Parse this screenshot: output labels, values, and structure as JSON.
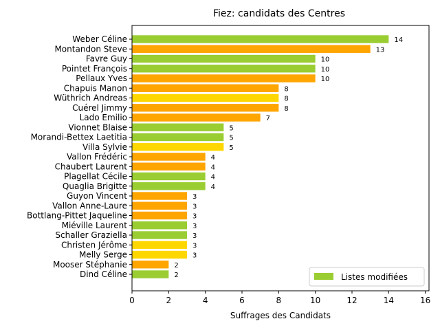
{
  "chart_data": {
    "type": "bar",
    "orientation": "horizontal",
    "title": "Fiez: candidats des Centres",
    "xlabel": "Suffrages des Candidats",
    "ylabel": "",
    "xlim": [
      0,
      16.2
    ],
    "xticks": [
      0,
      2,
      4,
      6,
      8,
      10,
      12,
      14,
      16
    ],
    "grid": false,
    "legend": {
      "label": "Listes modifiées",
      "color": "#9acd32",
      "placement": "lower-right"
    },
    "colors": {
      "green": "#9acd32",
      "orange": "#ffa500",
      "yellow": "#ffd700"
    },
    "bars": [
      {
        "name": "Weber Céline",
        "value": 14,
        "color": "green"
      },
      {
        "name": "Montandon Steve",
        "value": 13,
        "color": "orange"
      },
      {
        "name": "Favre Guy",
        "value": 10,
        "color": "green"
      },
      {
        "name": "Pointet François",
        "value": 10,
        "color": "green"
      },
      {
        "name": "Pellaux Yves",
        "value": 10,
        "color": "orange"
      },
      {
        "name": "Chapuis Manon",
        "value": 8,
        "color": "orange"
      },
      {
        "name": "Wüthrich Andreas",
        "value": 8,
        "color": "yellow"
      },
      {
        "name": "Cuérel Jimmy",
        "value": 8,
        "color": "orange"
      },
      {
        "name": "Lado Emilio",
        "value": 7,
        "color": "orange"
      },
      {
        "name": "Vionnet Blaise",
        "value": 5,
        "color": "green"
      },
      {
        "name": "Morandi-Bettex Laetitia",
        "value": 5,
        "color": "green"
      },
      {
        "name": "Villa Sylvie",
        "value": 5,
        "color": "yellow"
      },
      {
        "name": "Vallon Frédéric",
        "value": 4,
        "color": "orange"
      },
      {
        "name": "Chaubert Laurent",
        "value": 4,
        "color": "orange"
      },
      {
        "name": "Plagellat Cécile",
        "value": 4,
        "color": "green"
      },
      {
        "name": "Quaglia Brigitte",
        "value": 4,
        "color": "green"
      },
      {
        "name": "Guyon Vincent",
        "value": 3,
        "color": "orange"
      },
      {
        "name": "Vallon Anne-Laure",
        "value": 3,
        "color": "orange"
      },
      {
        "name": "Bottlang-Pittet Jaqueline",
        "value": 3,
        "color": "orange"
      },
      {
        "name": "Miéville Laurent",
        "value": 3,
        "color": "green"
      },
      {
        "name": "Schaller Graziella",
        "value": 3,
        "color": "green"
      },
      {
        "name": "Christen Jérôme",
        "value": 3,
        "color": "yellow"
      },
      {
        "name": "Melly Serge",
        "value": 3,
        "color": "yellow"
      },
      {
        "name": "Mooser Stéphanie",
        "value": 2,
        "color": "orange"
      },
      {
        "name": "Dind Céline",
        "value": 2,
        "color": "green"
      }
    ]
  }
}
